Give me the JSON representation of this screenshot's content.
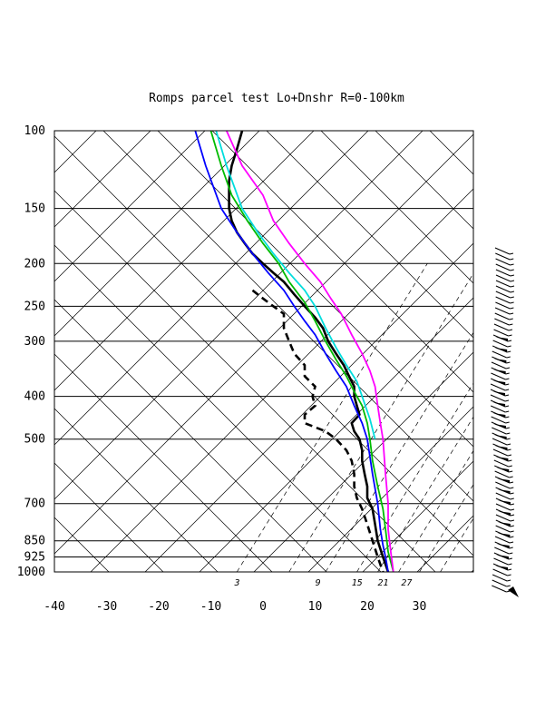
{
  "chart_data": {
    "type": "line",
    "title": "Romps parcel test Lo+Dnshr R=0-100km",
    "xlabel": "",
    "ylabel": "",
    "xlim": [
      -40,
      40
    ],
    "x_ticks": [
      "-40",
      "-30",
      "-20",
      "-10",
      "0",
      "10",
      "20",
      "30"
    ],
    "pressure_levels": [
      100,
      150,
      200,
      250,
      300,
      400,
      500,
      700,
      850,
      925,
      1000
    ],
    "pressure_labels": [
      "100",
      "150",
      "200",
      "250",
      "300",
      "400",
      "500",
      "700",
      "850",
      "925",
      "1000"
    ],
    "mixing_ratio_labels": [
      "3",
      "9",
      "15",
      "21",
      "27"
    ],
    "grid": true,
    "series": [
      {
        "color": "#000000",
        "style": "solid",
        "points": [
          [
            -4,
            100
          ],
          [
            -5,
            110
          ],
          [
            -6,
            120
          ],
          [
            -6.5,
            130
          ],
          [
            -6.5,
            140
          ],
          [
            -6.5,
            150
          ],
          [
            -6,
            160
          ],
          [
            -5,
            170
          ],
          [
            -3.5,
            180
          ],
          [
            -2,
            190
          ],
          [
            0,
            200
          ],
          [
            2,
            210
          ],
          [
            4,
            220
          ],
          [
            6,
            235
          ],
          [
            8,
            250
          ],
          [
            10,
            265
          ],
          [
            11.5,
            280
          ],
          [
            12.5,
            300
          ],
          [
            14,
            320
          ],
          [
            15.5,
            340
          ],
          [
            16.5,
            360
          ],
          [
            17.5,
            380
          ],
          [
            17.5,
            400
          ],
          [
            18,
            420
          ],
          [
            18.5,
            440
          ],
          [
            17,
            460
          ],
          [
            17.5,
            480
          ],
          [
            18.5,
            500
          ],
          [
            19,
            530
          ],
          [
            19,
            560
          ],
          [
            19.5,
            600
          ],
          [
            20,
            640
          ],
          [
            20,
            680
          ],
          [
            21,
            720
          ],
          [
            21.5,
            780
          ],
          [
            22,
            850
          ],
          [
            23,
            925
          ],
          [
            24,
            1000
          ]
        ]
      },
      {
        "color": "#000000",
        "style": "dashed",
        "points": [
          [
            -2,
            230
          ],
          [
            0,
            240
          ],
          [
            2,
            250
          ],
          [
            4,
            260
          ],
          [
            4,
            280
          ],
          [
            5,
            300
          ],
          [
            6,
            320
          ],
          [
            8,
            340
          ],
          [
            8,
            360
          ],
          [
            10,
            380
          ],
          [
            9.5,
            400
          ],
          [
            10,
            420
          ],
          [
            8,
            440
          ],
          [
            8,
            460
          ],
          [
            12,
            480
          ],
          [
            14,
            500
          ],
          [
            16,
            530
          ],
          [
            17,
            560
          ],
          [
            17.5,
            600
          ],
          [
            17.5,
            640
          ],
          [
            18,
            680
          ],
          [
            19,
            720
          ],
          [
            20,
            780
          ],
          [
            21,
            850
          ],
          [
            22,
            925
          ],
          [
            23,
            1000
          ]
        ]
      },
      {
        "color": "#0000ff",
        "style": "solid",
        "points": [
          [
            -13,
            100
          ],
          [
            -11,
            120
          ],
          [
            -8,
            150
          ],
          [
            -5,
            170
          ],
          [
            -2,
            190
          ],
          [
            1,
            210
          ],
          [
            4,
            230
          ],
          [
            6,
            250
          ],
          [
            8,
            270
          ],
          [
            10,
            290
          ],
          [
            12,
            320
          ],
          [
            14,
            350
          ],
          [
            16,
            380
          ],
          [
            17.5,
            420
          ],
          [
            19,
            460
          ],
          [
            20,
            500
          ],
          [
            21,
            600
          ],
          [
            22,
            700
          ],
          [
            22.5,
            800
          ],
          [
            23,
            870
          ],
          [
            23.5,
            925
          ],
          [
            24,
            1000
          ]
        ]
      },
      {
        "color": "#00bb00",
        "style": "solid",
        "points": [
          [
            -10,
            100
          ],
          [
            -8,
            120
          ],
          [
            -6,
            140
          ],
          [
            -3,
            160
          ],
          [
            0,
            180
          ],
          [
            3,
            200
          ],
          [
            5,
            220
          ],
          [
            8,
            245
          ],
          [
            10,
            270
          ],
          [
            12,
            300
          ],
          [
            14,
            330
          ],
          [
            16,
            360
          ],
          [
            17.5,
            390
          ],
          [
            19,
            420
          ],
          [
            20,
            460
          ],
          [
            20.5,
            500
          ],
          [
            21,
            560
          ],
          [
            22,
            640
          ],
          [
            23,
            720
          ],
          [
            23.5,
            800
          ],
          [
            24,
            900
          ],
          [
            25,
            1000
          ]
        ]
      },
      {
        "color": "#00dddd",
        "style": "solid",
        "points": [
          [
            -9,
            100
          ],
          [
            -7,
            120
          ],
          [
            -4,
            150
          ],
          [
            -1,
            170
          ],
          [
            2,
            190
          ],
          [
            5,
            210
          ],
          [
            8,
            230
          ],
          [
            10,
            250
          ],
          [
            12,
            280
          ],
          [
            14,
            310
          ],
          [
            16,
            340
          ],
          [
            18,
            370
          ],
          [
            19,
            400
          ],
          [
            20.5,
            450
          ],
          [
            21.5,
            500
          ]
        ]
      },
      {
        "color": "#ff00ff",
        "style": "solid",
        "points": [
          [
            -7,
            100
          ],
          [
            -4,
            120
          ],
          [
            0,
            140
          ],
          [
            2,
            160
          ],
          [
            5,
            180
          ],
          [
            8,
            200
          ],
          [
            11,
            220
          ],
          [
            13,
            240
          ],
          [
            15,
            260
          ],
          [
            17,
            290
          ],
          [
            19,
            320
          ],
          [
            20.5,
            350
          ],
          [
            21.5,
            380
          ],
          [
            22,
            420
          ],
          [
            22.5,
            460
          ],
          [
            23,
            500
          ],
          [
            23.5,
            600
          ],
          [
            24,
            700
          ],
          [
            24,
            800
          ],
          [
            24.5,
            900
          ],
          [
            25,
            1000
          ]
        ]
      }
    ]
  }
}
